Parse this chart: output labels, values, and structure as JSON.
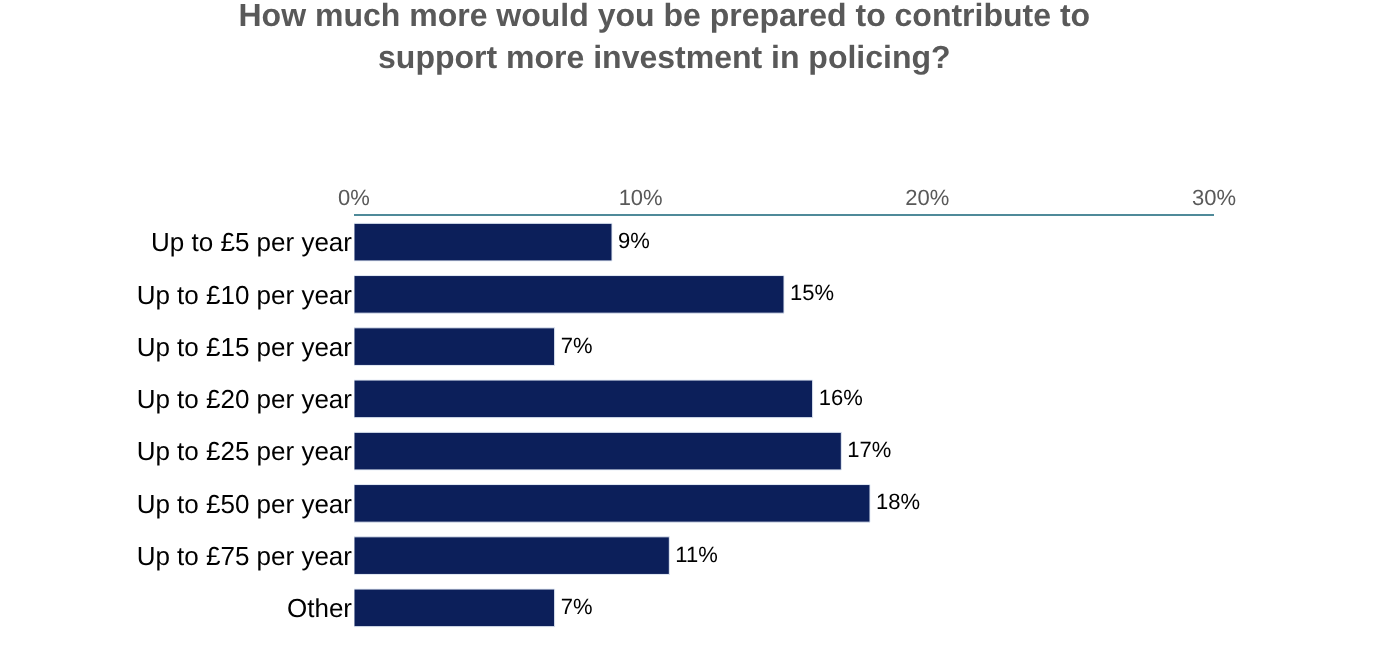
{
  "chart_data": {
    "type": "bar",
    "orientation": "horizontal",
    "title": "How much more would you be prepared to contribute to\nsupport more investment in policing?",
    "categories": [
      "Up to £5 per year",
      "Up to £10 per year",
      "Up to £15 per year",
      "Up to £20 per year",
      "Up to £25 per year",
      "Up to £50 per year",
      "Up to £75 per year",
      "Other"
    ],
    "values": [
      9,
      15,
      7,
      16,
      17,
      18,
      11,
      7
    ],
    "value_labels": [
      "9%",
      "15%",
      "7%",
      "16%",
      "17%",
      "18%",
      "11%",
      "7%"
    ],
    "color": "#0c1f5a",
    "xlim": [
      0,
      30
    ],
    "xticks": [
      {
        "value": 0,
        "label": "0%"
      },
      {
        "value": 10,
        "label": "10%"
      },
      {
        "value": 20,
        "label": "20%"
      },
      {
        "value": 30,
        "label": "30%"
      }
    ],
    "legend": false
  }
}
